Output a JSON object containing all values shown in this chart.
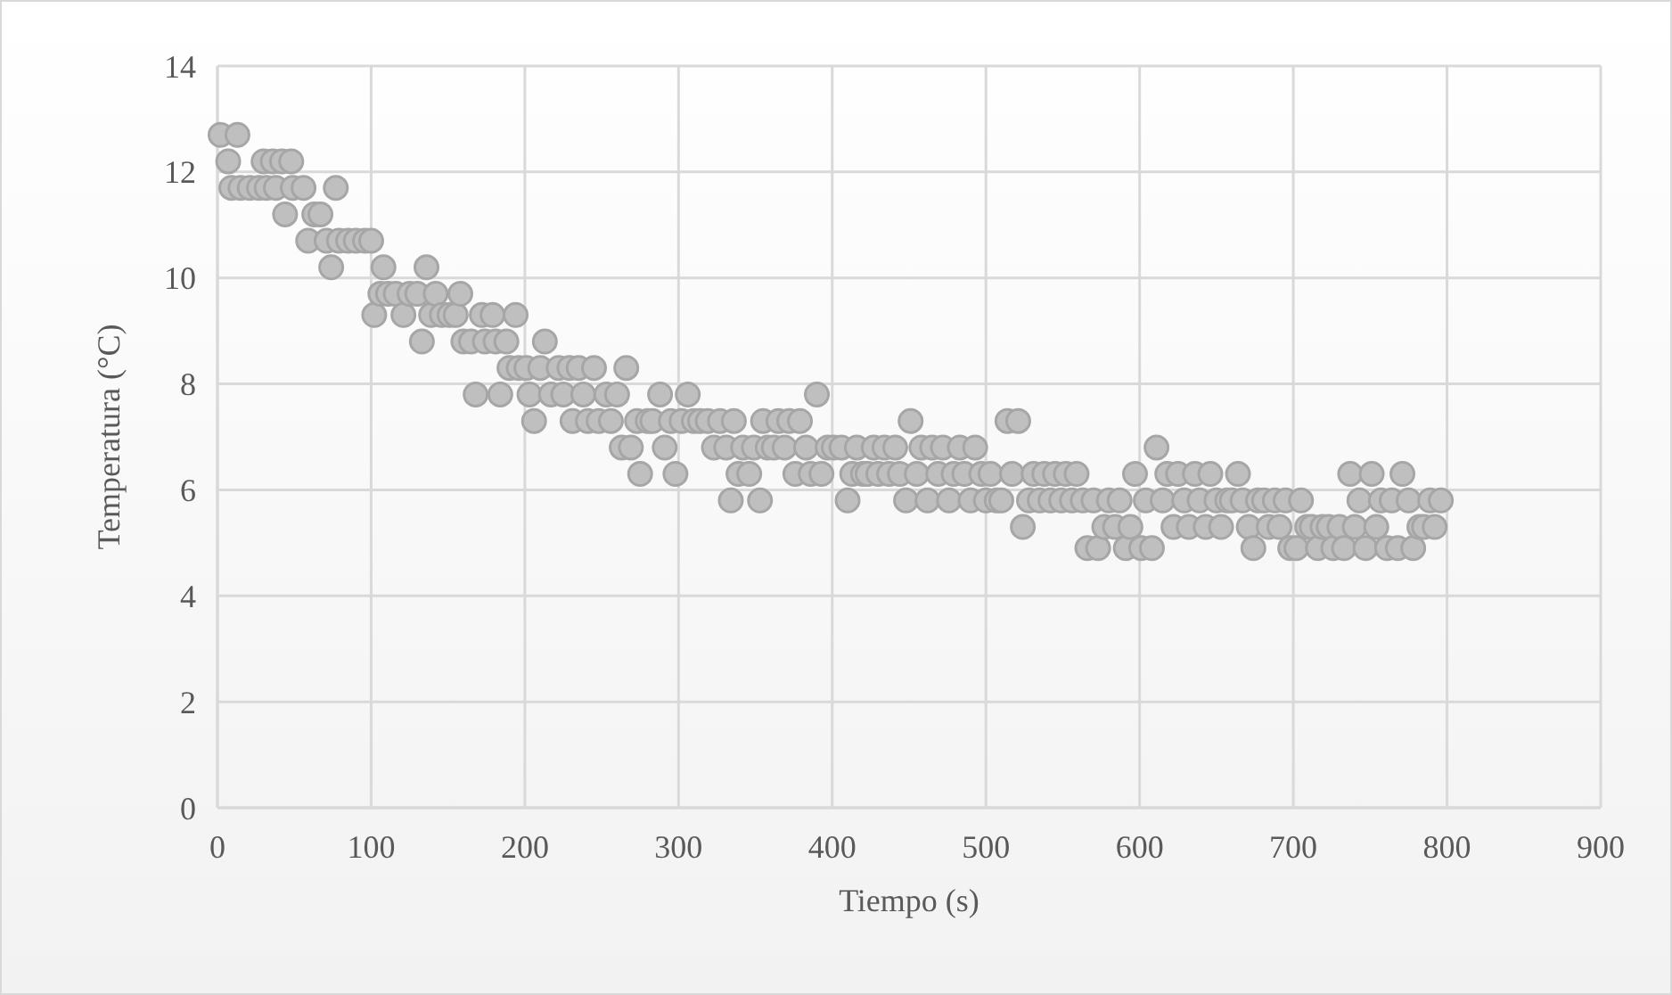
{
  "chart_data": {
    "type": "scatter",
    "xlabel": "Tiempo (s)",
    "ylabel": "Temperatura (°C)",
    "xlim": [
      0,
      900
    ],
    "xticks": [
      0,
      100,
      200,
      300,
      400,
      500,
      600,
      700,
      800,
      900
    ],
    "ylim": [
      0,
      14
    ],
    "yticks": [
      0,
      2,
      4,
      6,
      8,
      10,
      12,
      14
    ],
    "grid": true,
    "marker": "circle",
    "series": [
      {
        "color": "#bfbfbf",
        "x": [
          2,
          7,
          9,
          13,
          15,
          21,
          27,
          30,
          32,
          36,
          38,
          42,
          44,
          48,
          49,
          56,
          59,
          63,
          67,
          71,
          74,
          77,
          79,
          85,
          90,
          96,
          100,
          102,
          106,
          108,
          111,
          116,
          121,
          125,
          130,
          133,
          136,
          139,
          142,
          146,
          151,
          155,
          158,
          160,
          165,
          168,
          172,
          174,
          179,
          181,
          184,
          188,
          190,
          194,
          196,
          201,
          203,
          206,
          210,
          213,
          217,
          222,
          225,
          229,
          231,
          235,
          238,
          241,
          245,
          248,
          253,
          256,
          260,
          263,
          266,
          269,
          273,
          275,
          280,
          283,
          288,
          291,
          295,
          298,
          302,
          306,
          310,
          314,
          319,
          323,
          327,
          331,
          334,
          336,
          339,
          342,
          346,
          349,
          353,
          355,
          358,
          362,
          365,
          369,
          372,
          376,
          379,
          383,
          386,
          390,
          393,
          397,
          401,
          406,
          410,
          413,
          416,
          420,
          423,
          427,
          430,
          434,
          437,
          441,
          444,
          448,
          451,
          455,
          458,
          462,
          465,
          469,
          472,
          476,
          479,
          483,
          486,
          490,
          493,
          497,
          500,
          503,
          507,
          510,
          514,
          517,
          521,
          524,
          528,
          531,
          535,
          538,
          542,
          545,
          549,
          552,
          556,
          559,
          563,
          566,
          570,
          573,
          577,
          580,
          584,
          587,
          591,
          594,
          597,
          601,
          604,
          608,
          611,
          615,
          618,
          622,
          625,
          629,
          632,
          636,
          639,
          643,
          646,
          650,
          653,
          657,
          660,
          664,
          667,
          671,
          674,
          677,
          681,
          684,
          688,
          691,
          695,
          698,
          702,
          705,
          709,
          712,
          716,
          719,
          723,
          726,
          730,
          733,
          737,
          740,
          743,
          747,
          751,
          754,
          757,
          761,
          764,
          768,
          771,
          775,
          778,
          782,
          785,
          789,
          792,
          796
        ],
        "values": [
          12.7,
          12.2,
          11.7,
          12.7,
          11.7,
          11.7,
          11.7,
          12.2,
          11.7,
          12.2,
          11.7,
          12.2,
          11.2,
          12.2,
          11.7,
          11.7,
          10.7,
          11.2,
          11.2,
          10.7,
          10.2,
          11.7,
          10.7,
          10.7,
          10.7,
          10.7,
          10.7,
          9.3,
          9.7,
          10.2,
          9.7,
          9.7,
          9.3,
          9.7,
          9.7,
          8.8,
          10.2,
          9.3,
          9.7,
          9.3,
          9.3,
          9.3,
          9.7,
          8.8,
          8.8,
          7.8,
          9.3,
          8.8,
          9.3,
          8.8,
          7.8,
          8.8,
          8.3,
          9.3,
          8.3,
          8.3,
          7.8,
          7.3,
          8.3,
          8.8,
          7.8,
          8.3,
          7.8,
          8.3,
          7.3,
          8.3,
          7.8,
          7.3,
          8.3,
          7.3,
          7.8,
          7.3,
          7.8,
          6.8,
          8.3,
          6.8,
          7.3,
          6.3,
          7.3,
          7.3,
          7.8,
          6.8,
          7.3,
          6.3,
          7.3,
          7.8,
          7.3,
          7.3,
          7.3,
          6.8,
          7.3,
          6.8,
          5.8,
          7.3,
          6.3,
          6.8,
          6.3,
          6.8,
          5.8,
          7.3,
          6.8,
          6.8,
          7.3,
          6.8,
          7.3,
          6.3,
          7.3,
          6.8,
          6.3,
          7.8,
          6.3,
          6.8,
          6.8,
          6.8,
          5.8,
          6.3,
          6.8,
          6.3,
          6.3,
          6.8,
          6.3,
          6.8,
          6.3,
          6.8,
          6.3,
          5.8,
          7.3,
          6.3,
          6.8,
          5.8,
          6.8,
          6.3,
          6.8,
          5.8,
          6.3,
          6.8,
          6.3,
          5.8,
          6.8,
          6.3,
          5.8,
          6.3,
          5.8,
          5.8,
          7.3,
          6.3,
          7.3,
          5.3,
          5.8,
          6.3,
          5.8,
          6.3,
          5.8,
          6.3,
          5.8,
          6.3,
          5.8,
          6.3,
          5.8,
          4.9,
          5.8,
          4.9,
          5.3,
          5.8,
          5.3,
          5.8,
          4.9,
          5.3,
          6.3,
          4.9,
          5.8,
          4.9,
          6.8,
          5.8,
          6.3,
          5.3,
          6.3,
          5.8,
          5.3,
          6.3,
          5.8,
          5.3,
          6.3,
          5.8,
          5.3,
          5.8,
          5.8,
          6.3,
          5.8,
          5.3,
          4.9,
          5.8,
          5.8,
          5.3,
          5.8,
          5.3,
          5.8,
          4.9,
          4.9,
          5.8,
          5.3,
          5.3,
          4.9,
          5.3,
          5.3,
          4.9,
          5.3,
          4.9,
          6.3,
          5.3,
          5.8,
          4.9,
          6.3,
          5.3,
          5.8,
          4.9,
          5.8,
          4.9,
          6.3,
          5.8,
          4.9,
          5.3,
          5.3,
          5.8,
          5.3,
          5.8
        ]
      }
    ]
  }
}
